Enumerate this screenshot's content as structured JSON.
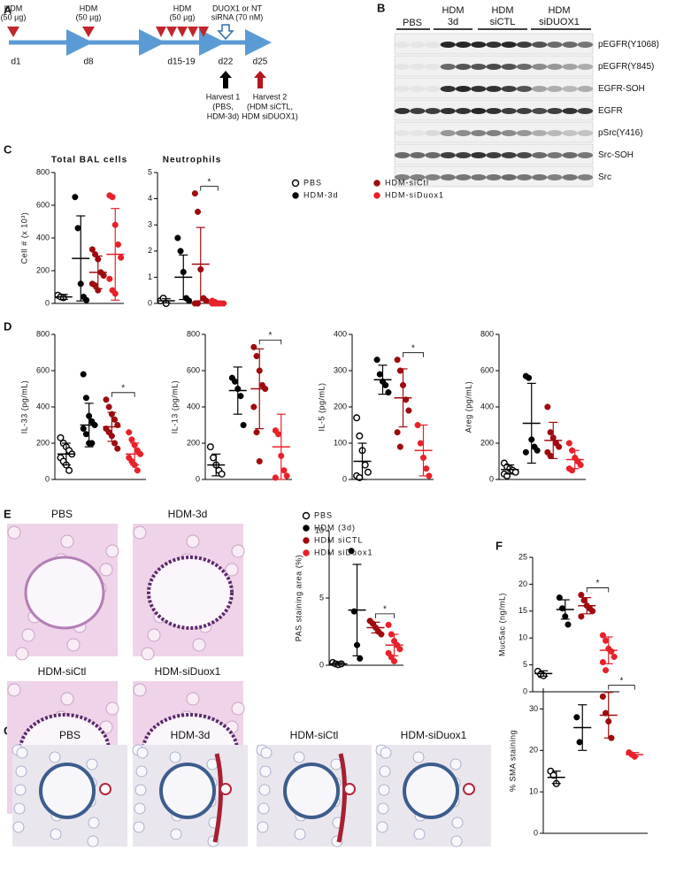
{
  "panels": [
    "A",
    "B",
    "C",
    "D",
    "E",
    "F",
    "G"
  ],
  "timeline": {
    "doses": [
      [
        "HDM",
        "(50 µg)"
      ],
      [
        "HDM",
        "(50 µg)"
      ],
      [
        "HDM",
        "(50 µg)"
      ]
    ],
    "sirna": [
      "DUOX1 or NT",
      "siRNA (70 nM)"
    ],
    "days": [
      "d1",
      "d8",
      "d15-19",
      "d22",
      "d25"
    ],
    "harvests": [
      [
        "Harvest 1",
        "(PBS,",
        "HDM-3d)"
      ],
      [
        "Harvest 2",
        "(HDM siCTL,",
        "HDM siDUOX1)"
      ]
    ]
  },
  "blot": {
    "groups": [
      [
        "PBS"
      ],
      [
        "HDM",
        "3d"
      ],
      [
        "HDM",
        "siCTL"
      ],
      [
        "HDM",
        "siDUOX1"
      ]
    ],
    "rows": [
      "pEGFR(Y1068)",
      "pEGFR(Y845)",
      "EGFR-SOH",
      "EGFR",
      "pSrc(Y416)",
      "Src-SOH",
      "Src"
    ]
  },
  "histology_E": [
    "PBS",
    "HDM-3d",
    "HDM-siCtl",
    "HDM-siDuox1"
  ],
  "histology_G": [
    "PBS",
    "HDM-3d",
    "HDM-siCtl",
    "HDM-siDuox1"
  ],
  "chart_data": [
    {
      "type": "strip",
      "title": "Total BAL cells",
      "y_label": "Cell # (x 10³)",
      "ylim": [
        0,
        800
      ],
      "yticks": [
        0,
        200,
        400,
        600,
        800
      ],
      "series": [
        {
          "color": "#000000",
          "hollow": true,
          "values": [
            50,
            40,
            35
          ],
          "mean": 40,
          "sd": 15
        },
        {
          "color": "#000000",
          "values": [
            650,
            460,
            120,
            40,
            20
          ],
          "mean": 275,
          "sd": 260
        },
        {
          "color": "#9e0b0f",
          "values": [
            330,
            300,
            270,
            190,
            170,
            120,
            110,
            80
          ],
          "mean": 190,
          "sd": 100
        },
        {
          "color": "#e8202a",
          "values": [
            660,
            650,
            480,
            360,
            280,
            150,
            80,
            60
          ],
          "mean": 300,
          "sd": 280
        }
      ]
    },
    {
      "type": "strip",
      "title": "Neutrophils",
      "ylim": [
        0,
        5
      ],
      "yticks": [
        0,
        1,
        2,
        3,
        4,
        5
      ],
      "annotation": "*",
      "series": [
        {
          "name": "PBS",
          "color": "#000000",
          "hollow": true,
          "values": [
            0.1,
            0.2,
            0
          ],
          "mean": 0.1,
          "sd": 0.08
        },
        {
          "name": "HDM-3d",
          "color": "#000000",
          "values": [
            2.5,
            2.0,
            1.2,
            0.2,
            0.1
          ],
          "mean": 1.0,
          "sd": 0.85
        },
        {
          "name": "HDM-siCtl",
          "color": "#9e0b0f",
          "values": [
            4.2,
            3.5,
            1.3,
            0.2,
            0.1,
            0,
            0
          ],
          "mean": 1.5,
          "sd": 1.4
        },
        {
          "name": "HDM-siDuox1",
          "color": "#e8202a",
          "values": [
            0.1,
            0.05,
            0,
            0,
            0,
            0,
            0,
            0
          ],
          "mean": 0.03,
          "sd": 0.03
        }
      ]
    },
    {
      "type": "strip",
      "y_label": "IL-33 (pg/mL)",
      "ylim": [
        0,
        800
      ],
      "yticks": [
        0,
        200,
        400,
        600,
        800
      ],
      "annotation": "*",
      "series": [
        {
          "color": "#000000",
          "hollow": true,
          "values": [
            230,
            200,
            180,
            160,
            140,
            120,
            100,
            80,
            50
          ],
          "mean": 140,
          "sd": 60
        },
        {
          "color": "#000000",
          "values": [
            580,
            450,
            350,
            320,
            300,
            280,
            250,
            200,
            200
          ],
          "mean": 300,
          "sd": 120
        },
        {
          "color": "#9e0b0f",
          "values": [
            440,
            400,
            360,
            330,
            300,
            280,
            260,
            240,
            200,
            170
          ],
          "mean": 290,
          "sd": 80
        },
        {
          "color": "#e8202a",
          "values": [
            260,
            220,
            190,
            160,
            140,
            120,
            100,
            80,
            50
          ],
          "mean": 140,
          "sd": 60
        }
      ]
    },
    {
      "type": "strip",
      "y_label": "IL-13 (pg/mL)",
      "ylim": [
        0,
        800
      ],
      "yticks": [
        0,
        200,
        400,
        600,
        800
      ],
      "annotation": "*",
      "series": [
        {
          "color": "#000000",
          "hollow": true,
          "values": [
            180,
            120,
            80,
            50,
            30
          ],
          "mean": 80,
          "sd": 60
        },
        {
          "color": "#000000",
          "values": [
            560,
            540,
            500,
            460,
            300
          ],
          "mean": 490,
          "sd": 130
        },
        {
          "color": "#9e0b0f",
          "values": [
            730,
            680,
            600,
            520,
            500,
            400,
            260,
            100
          ],
          "mean": 500,
          "sd": 220
        },
        {
          "color": "#e8202a",
          "values": [
            270,
            250,
            130,
            50,
            20,
            10
          ],
          "mean": 180,
          "sd": 180
        }
      ]
    },
    {
      "type": "strip",
      "y_label": "IL-5 (pg/mL)",
      "ylim": [
        0,
        400
      ],
      "yticks": [
        0,
        100,
        200,
        300,
        400
      ],
      "annotation": "*",
      "series": [
        {
          "color": "#000000",
          "hollow": true,
          "values": [
            170,
            120,
            80,
            40,
            20,
            10,
            5
          ],
          "mean": 50,
          "sd": 50
        },
        {
          "color": "#000000",
          "values": [
            330,
            290,
            270,
            260,
            240
          ],
          "mean": 275,
          "sd": 40
        },
        {
          "color": "#9e0b0f",
          "values": [
            330,
            300,
            260,
            220,
            190,
            130,
            90
          ],
          "mean": 225,
          "sd": 80
        },
        {
          "color": "#e8202a",
          "values": [
            150,
            100,
            60,
            30,
            10
          ],
          "mean": 80,
          "sd": 70
        }
      ]
    },
    {
      "type": "strip",
      "y_label": "Areg (pg/mL)",
      "ylim": [
        0,
        800
      ],
      "yticks": [
        0,
        200,
        400,
        600,
        800
      ],
      "series": [
        {
          "color": "#000000",
          "hollow": true,
          "values": [
            90,
            70,
            60,
            50,
            40,
            30,
            20
          ],
          "mean": 55,
          "sd": 25
        },
        {
          "color": "#000000",
          "values": [
            570,
            560,
            220,
            180,
            160,
            150
          ],
          "mean": 310,
          "sd": 220
        },
        {
          "color": "#9e0b0f",
          "values": [
            400,
            260,
            230,
            200,
            180,
            150,
            130
          ],
          "mean": 215,
          "sd": 100
        },
        {
          "color": "#e8202a",
          "values": [
            200,
            160,
            120,
            100,
            80,
            60,
            50
          ],
          "mean": 110,
          "sd": 50
        }
      ]
    },
    {
      "type": "strip",
      "y_label": "PAS staining area (%)",
      "ylim": [
        0,
        10
      ],
      "yticks": [
        0,
        5,
        10
      ],
      "annotation": "*",
      "series": [
        {
          "name": "PBS",
          "color": "#000000",
          "hollow": true,
          "values": [
            0.2,
            0.1,
            0.05,
            0.1
          ],
          "mean": 0.1,
          "sd": 0.1
        },
        {
          "name": "HDM (3d)",
          "color": "#000000",
          "values": [
            8.5,
            4,
            1.5,
            0.5
          ],
          "mean": 4.1,
          "sd": 3.4
        },
        {
          "name": "HDM siCTL",
          "color": "#9e0b0f",
          "values": [
            3.3,
            3.1,
            2.8,
            2.5,
            2.3
          ],
          "mean": 2.8,
          "sd": 0.4
        },
        {
          "name": "HDM siDuox1",
          "color": "#e8202a",
          "values": [
            3,
            2.3,
            1.8,
            1.5,
            1.2,
            0.9,
            0.6,
            0.3
          ],
          "mean": 1.5,
          "sd": 0.8
        }
      ]
    },
    {
      "type": "strip",
      "y_label": "Muc5ac (ng/mL)",
      "ylim": [
        0,
        25
      ],
      "yticks": [
        0,
        5,
        10,
        15,
        20,
        25
      ],
      "annotation": "*",
      "series": [
        {
          "color": "#000000",
          "hollow": true,
          "values": [
            3.8,
            3.2,
            3.0
          ],
          "mean": 3.4,
          "sd": 0.5
        },
        {
          "color": "#000000",
          "values": [
            17.5,
            15.5,
            14,
            12.5
          ],
          "mean": 15.3,
          "sd": 1.8
        },
        {
          "color": "#9e0b0f",
          "values": [
            18,
            17,
            16,
            15.5,
            15,
            14
          ],
          "mean": 16,
          "sd": 1.5
        },
        {
          "color": "#e8202a",
          "values": [
            10.5,
            9.5,
            8,
            7.5,
            6.5,
            5.5,
            4
          ],
          "mean": 7.7,
          "sd": 2.5
        }
      ]
    },
    {
      "type": "strip",
      "y_label": "% SMA staining",
      "ylim": [
        0,
        35
      ],
      "yticks": [
        0,
        10,
        20,
        30
      ],
      "annotation": "*",
      "series": [
        {
          "color": "#000000",
          "hollow": true,
          "values": [
            15,
            14,
            12
          ],
          "mean": 13.5,
          "sd": 1.5
        },
        {
          "color": "#000000",
          "values": [
            28,
            22
          ],
          "mean": 25.5,
          "sd": 5.5
        },
        {
          "color": "#9e0b0f",
          "values": [
            33,
            29,
            27,
            23
          ],
          "mean": 28.5,
          "sd": 5.5
        },
        {
          "color": "#e8202a",
          "values": [
            19.5,
            19,
            18.5
          ],
          "mean": 19,
          "sd": 0.5
        }
      ]
    }
  ]
}
